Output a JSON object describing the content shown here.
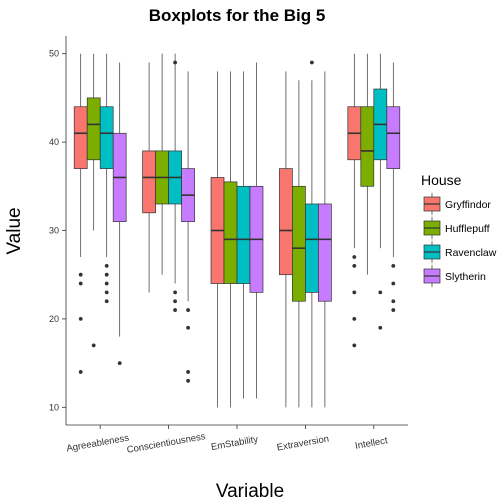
{
  "chart_data": {
    "type": "boxplot",
    "title": "Boxplots for the Big 5",
    "xlabel": "Variable",
    "ylabel": "Value",
    "ylim": [
      8,
      52
    ],
    "yticks": [
      10,
      20,
      30,
      40,
      50
    ],
    "categories": [
      "Agreeableness",
      "Conscientiousness",
      "EmStability",
      "Extraversion",
      "Intellect"
    ],
    "legend": {
      "title": "House",
      "position": "right",
      "entries": [
        {
          "name": "Gryffindor",
          "color": "#F8766D"
        },
        {
          "name": "Hufflepuff",
          "color": "#7CAE00"
        },
        {
          "name": "Ravenclaw",
          "color": "#00BFC4"
        },
        {
          "name": "Slytherin",
          "color": "#C77CFF"
        }
      ]
    },
    "series": [
      {
        "name": "Gryffindor",
        "color": "#F8766D",
        "boxes": [
          {
            "min": 27,
            "q1": 37,
            "median": 41,
            "q3": 44,
            "max": 50,
            "outliers": [
              25,
              24,
              20,
              14
            ]
          },
          {
            "min": 23,
            "q1": 32,
            "median": 36,
            "q3": 39,
            "max": 49,
            "outliers": []
          },
          {
            "min": 10,
            "q1": 24,
            "median": 30,
            "q3": 36,
            "max": 48,
            "outliers": []
          },
          {
            "min": 10,
            "q1": 25,
            "median": 30,
            "q3": 37,
            "max": 48,
            "outliers": []
          },
          {
            "min": 28,
            "q1": 38,
            "median": 41,
            "q3": 44,
            "max": 50,
            "outliers": [
              27,
              26,
              23,
              20,
              17
            ]
          }
        ]
      },
      {
        "name": "Hufflepuff",
        "color": "#7CAE00",
        "boxes": [
          {
            "min": 30,
            "q1": 38,
            "median": 42,
            "q3": 45,
            "max": 50,
            "outliers": [
              17
            ]
          },
          {
            "min": 25,
            "q1": 33,
            "median": 36,
            "q3": 39,
            "max": 50,
            "outliers": []
          },
          {
            "min": 10,
            "q1": 24,
            "median": 29,
            "q3": 35.5,
            "max": 48,
            "outliers": []
          },
          {
            "min": 10,
            "q1": 22,
            "median": 28,
            "q3": 35,
            "max": 47,
            "outliers": []
          },
          {
            "min": 25,
            "q1": 35,
            "median": 39,
            "q3": 44,
            "max": 50,
            "outliers": []
          }
        ]
      },
      {
        "name": "Ravenclaw",
        "color": "#00BFC4",
        "boxes": [
          {
            "min": 27,
            "q1": 37,
            "median": 41,
            "q3": 44,
            "max": 50,
            "outliers": [
              26,
              25,
              24,
              23,
              22
            ]
          },
          {
            "min": 24,
            "q1": 33,
            "median": 36,
            "q3": 39,
            "max": 50,
            "outliers": [
              49,
              23,
              22,
              21
            ]
          },
          {
            "min": 11,
            "q1": 24,
            "median": 29,
            "q3": 35,
            "max": 48,
            "outliers": []
          },
          {
            "min": 10,
            "q1": 23,
            "median": 29,
            "q3": 33,
            "max": 47,
            "outliers": [
              49
            ]
          },
          {
            "min": 28,
            "q1": 38,
            "median": 42,
            "q3": 46,
            "max": 50,
            "outliers": [
              23,
              19
            ]
          }
        ]
      },
      {
        "name": "Slytherin",
        "color": "#C77CFF",
        "boxes": [
          {
            "min": 18,
            "q1": 31,
            "median": 36,
            "q3": 41,
            "max": 49,
            "outliers": [
              15
            ]
          },
          {
            "min": 22,
            "q1": 31,
            "median": 34,
            "q3": 37,
            "max": 48,
            "outliers": [
              21,
              19,
              14,
              13
            ]
          },
          {
            "min": 11,
            "q1": 23,
            "median": 29,
            "q3": 35,
            "max": 49,
            "outliers": []
          },
          {
            "min": 10,
            "q1": 22,
            "median": 29,
            "q3": 33,
            "max": 48,
            "outliers": []
          },
          {
            "min": 27,
            "q1": 37,
            "median": 41,
            "q3": 44,
            "max": 49,
            "outliers": [
              26,
              24,
              22,
              21
            ]
          }
        ]
      }
    ]
  }
}
